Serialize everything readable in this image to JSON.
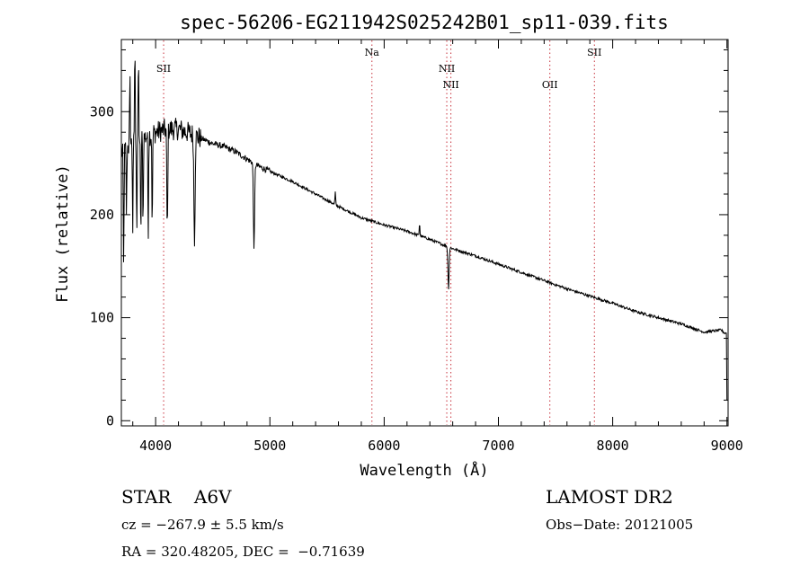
{
  "chart_data": {
    "type": "line",
    "title": "spec-56206-EG211942S025242B01_sp11-039.fits",
    "xlabel": "Wavelength (Å)",
    "ylabel": "Flux (relative)",
    "xlim": [
      3700,
      9010
    ],
    "ylim": [
      -5,
      370
    ],
    "xticks": [
      4000,
      5000,
      6000,
      7000,
      8000,
      9000
    ],
    "yticks": [
      0,
      100,
      200,
      300
    ],
    "line_color": "#000000",
    "marker_color": "#c8323c",
    "emission_lines": [
      {
        "label": "SII",
        "x": 4070,
        "row": 1
      },
      {
        "label": "Na",
        "x": 5893,
        "row": 0
      },
      {
        "label": "NII",
        "x": 6548,
        "row": 1
      },
      {
        "label": "NII",
        "x": 6584,
        "row": 2
      },
      {
        "label": "OII",
        "x": 7450,
        "row": 2
      },
      {
        "label": "SII",
        "x": 7840,
        "row": 0
      }
    ],
    "continuum": [
      [
        3700,
        260
      ],
      [
        3800,
        270
      ],
      [
        3900,
        275
      ],
      [
        4000,
        280
      ],
      [
        4100,
        283
      ],
      [
        4200,
        283
      ],
      [
        4300,
        279
      ],
      [
        4400,
        274
      ],
      [
        4500,
        269
      ],
      [
        4600,
        266
      ],
      [
        4700,
        261
      ],
      [
        4800,
        254
      ],
      [
        4900,
        247
      ],
      [
        5000,
        242
      ],
      [
        5200,
        232
      ],
      [
        5400,
        220
      ],
      [
        5600,
        208
      ],
      [
        5800,
        197
      ],
      [
        6000,
        190
      ],
      [
        6200,
        184
      ],
      [
        6400,
        176
      ],
      [
        6600,
        167
      ],
      [
        6800,
        160
      ],
      [
        7000,
        152
      ],
      [
        7200,
        144
      ],
      [
        7400,
        136
      ],
      [
        7600,
        128
      ],
      [
        7800,
        121
      ],
      [
        8000,
        114
      ],
      [
        8200,
        106
      ],
      [
        8400,
        100
      ],
      [
        8600,
        94
      ],
      [
        8800,
        86
      ],
      [
        8950,
        88
      ],
      [
        8980,
        85
      ]
    ],
    "features": [
      {
        "x": 3720,
        "y": 150,
        "w": 3
      },
      {
        "x": 3745,
        "y": 200,
        "w": 3
      },
      {
        "x": 3775,
        "y": 330,
        "w": 3
      },
      {
        "x": 3800,
        "y": 185,
        "w": 3
      },
      {
        "x": 3818,
        "y": 360,
        "w": 3
      },
      {
        "x": 3835,
        "y": 185,
        "w": 3
      },
      {
        "x": 3850,
        "y": 350,
        "w": 3
      },
      {
        "x": 3870,
        "y": 175,
        "w": 3
      },
      {
        "x": 3890,
        "y": 190,
        "w": 3
      },
      {
        "x": 3935,
        "y": 182,
        "w": 3
      },
      {
        "x": 3970,
        "y": 185,
        "w": 3
      },
      {
        "x": 4102,
        "y": 183,
        "w": 4
      },
      {
        "x": 4340,
        "y": 178,
        "w": 5
      },
      {
        "x": 4861,
        "y": 168,
        "w": 5
      },
      {
        "x": 5572,
        "y": 222,
        "w": 3
      },
      {
        "x": 6310,
        "y": 192,
        "w": 3
      },
      {
        "x": 6563,
        "y": 128,
        "w": 5
      }
    ],
    "final_drop": [
      9000,
      20
    ]
  },
  "info": {
    "object_class": "STAR    A6V",
    "survey": "LAMOST DR2",
    "cz": "cz = −267.9 ± 5.5 km/s",
    "obs_date": "Obs−Date: 20121005",
    "ra_dec": "RA = 320.48205, DEC =  −0.71639"
  }
}
